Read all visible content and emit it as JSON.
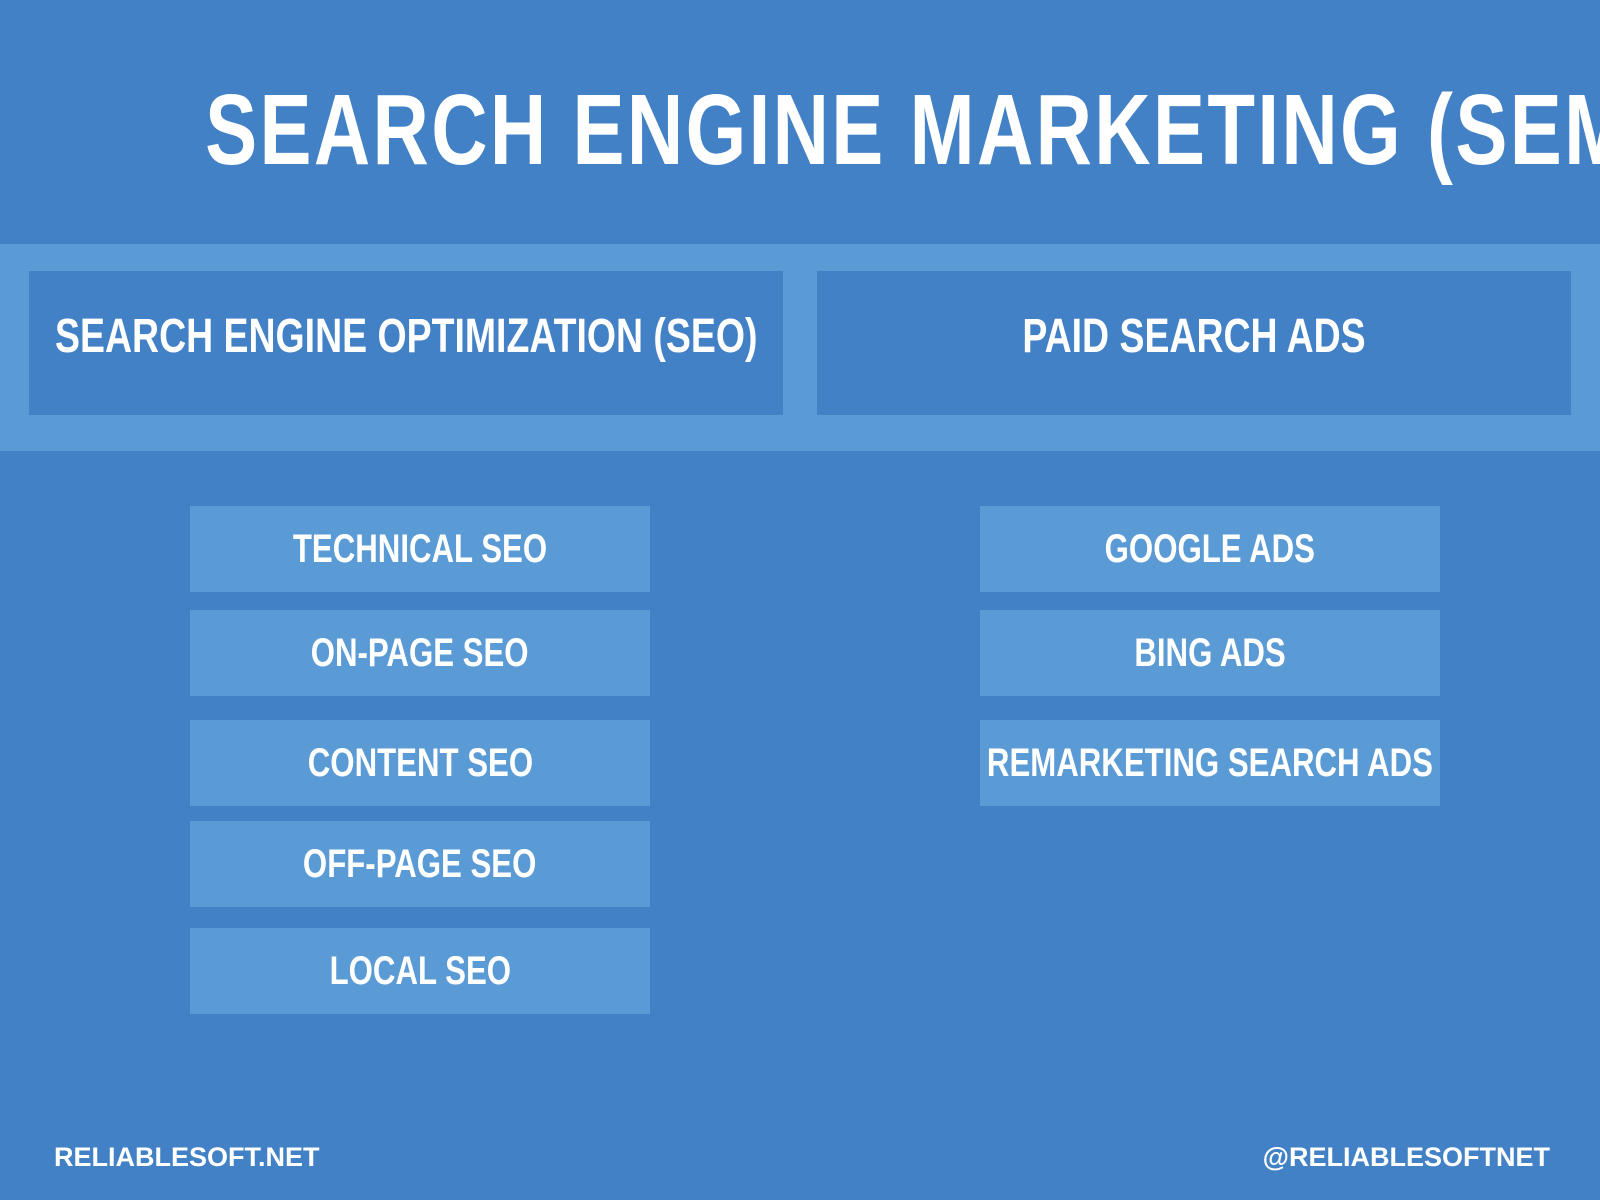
{
  "title": "SEARCH ENGINE MARKETING (SEM)",
  "categories": [
    {
      "label": "SEARCH ENGINE OPTIMIZATION (SEO)",
      "items": [
        "TECHNICAL SEO",
        "ON-PAGE SEO",
        "CONTENT SEO",
        "OFF-PAGE SEO",
        "LOCAL SEO"
      ]
    },
    {
      "label": "PAID SEARCH ADS",
      "items": [
        "GOOGLE ADS",
        "BING ADS",
        "REMARKETING SEARCH ADS"
      ]
    }
  ],
  "footer": {
    "left": "RELIABLESOFT.NET",
    "right": "@RELIABLESOFTNET"
  },
  "colors": {
    "background": "#4281c6",
    "accent": "#5b9bd5",
    "text": "#ffffff"
  }
}
